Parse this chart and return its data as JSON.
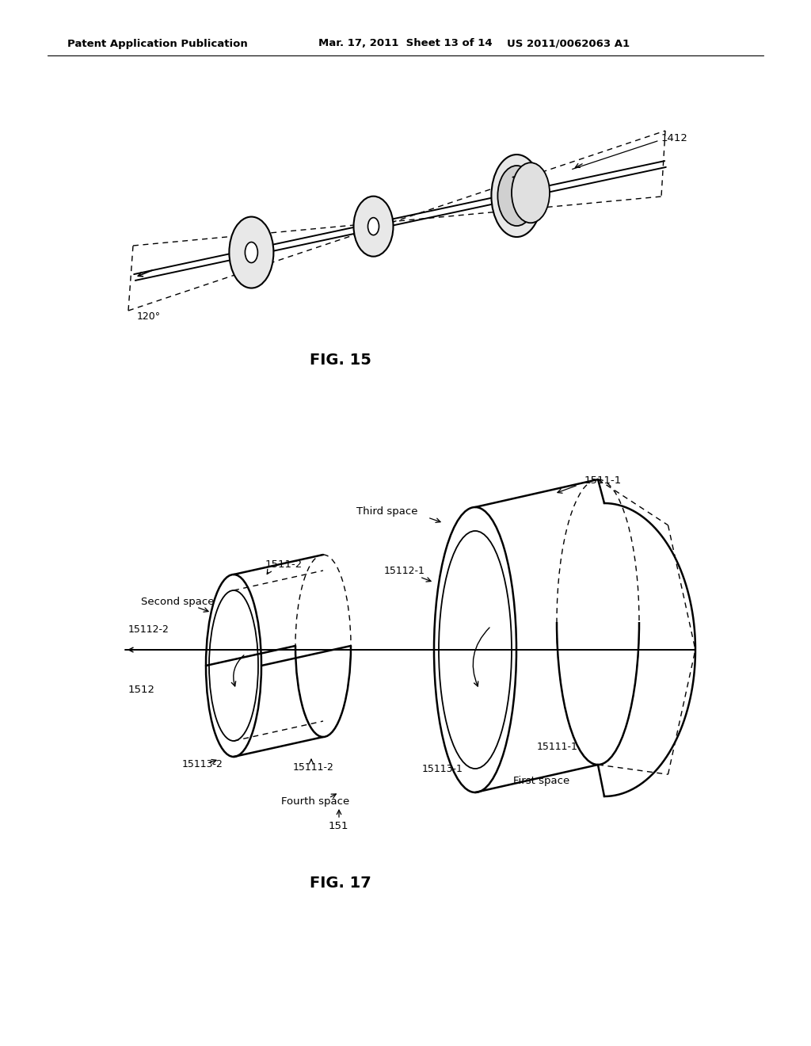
{
  "background_color": "#ffffff",
  "header_left": "Patent Application Publication",
  "header_center": "Mar. 17, 2011  Sheet 13 of 14",
  "header_right": "US 2011/0062063 A1",
  "fig15_label": "FIG. 15",
  "fig17_label": "FIG. 17",
  "label_1412": "1412",
  "label_120": "120°",
  "label_1511_1": "1511-1",
  "label_1511_2": "1511-2",
  "label_15112_1": "15112-1",
  "label_15112_2": "15112-2",
  "label_15111_1": "15111-1",
  "label_15111_2": "15111-2",
  "label_15113_1": "15113-1",
  "label_15113_2": "15113-2",
  "label_1512": "1512",
  "label_151": "151",
  "label_third_space": "Third space",
  "label_second_space": "Second space",
  "label_fourth_space": "Fourth space",
  "label_first_space": "First space"
}
